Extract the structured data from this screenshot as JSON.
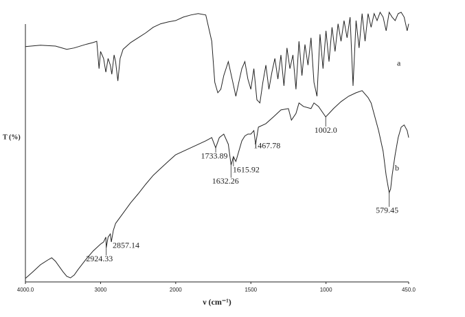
{
  "chart_data": {
    "type": "line",
    "x_label": "ν (cm⁻¹)",
    "y_label": "T (%)",
    "xlim": [
      4000,
      450
    ],
    "x_scale_split": 2000,
    "xticks": [
      {
        "value": 4000,
        "label": "4000.0"
      },
      3000,
      2000,
      1500,
      1000,
      {
        "value": 450,
        "label": "450.0"
      }
    ],
    "ylim": [
      0,
      102
    ],
    "series": [
      {
        "name": "a",
        "color": "#222222",
        "x": [
          4000,
          3800,
          3600,
          3450,
          3350,
          3200,
          3100,
          3050,
          3020,
          3000,
          2960,
          2930,
          2900,
          2870,
          2850,
          2820,
          2800,
          2770,
          2740,
          2700,
          2600,
          2500,
          2400,
          2300,
          2200,
          2100,
          2000,
          1950,
          1900,
          1850,
          1800,
          1760,
          1740,
          1720,
          1700,
          1680,
          1650,
          1620,
          1600,
          1580,
          1560,
          1540,
          1520,
          1500,
          1480,
          1460,
          1440,
          1420,
          1400,
          1380,
          1360,
          1340,
          1320,
          1300,
          1280,
          1260,
          1240,
          1220,
          1200,
          1180,
          1160,
          1140,
          1120,
          1100,
          1080,
          1060,
          1040,
          1020,
          1000,
          980,
          960,
          940,
          920,
          900,
          880,
          860,
          840,
          820,
          800,
          780,
          760,
          740,
          720,
          700,
          680,
          660,
          640,
          620,
          600,
          580,
          560,
          540,
          520,
          500,
          480,
          460,
          450
        ],
        "values": [
          87.7,
          88.2,
          87.9,
          86.7,
          87.2,
          88.5,
          89.2,
          89.7,
          79.5,
          85.9,
          83.3,
          78.2,
          83.3,
          80.8,
          77.4,
          84.6,
          82.1,
          74.9,
          83.3,
          86.7,
          89.2,
          91.0,
          92.8,
          94.9,
          96.2,
          96.9,
          97.4,
          98.7,
          99.5,
          100,
          99.5,
          89.7,
          74.4,
          70.5,
          71.8,
          76.9,
          82.1,
          74.4,
          69.2,
          74.4,
          79.5,
          82.1,
          75.6,
          71.8,
          79.5,
          67.9,
          66.7,
          74.4,
          80.8,
          71.8,
          78.2,
          83.3,
          75.6,
          84.6,
          73.1,
          87.2,
          79.5,
          84.6,
          71.8,
          89.7,
          76.9,
          88.5,
          80.8,
          91.0,
          74.4,
          69.2,
          92.3,
          79.5,
          93.6,
          82.1,
          94.9,
          85.9,
          96.2,
          89.7,
          97.4,
          91.0,
          98.7,
          73.1,
          97.4,
          87.2,
          100,
          89.7,
          100,
          94.9,
          100,
          97.4,
          100.5,
          98.7,
          93.6,
          100.5,
          98.7,
          97.4,
          100,
          100.5,
          98.7,
          93.6,
          96.2
        ]
      },
      {
        "name": "b",
        "color": "#222222",
        "x": [
          4000,
          3900,
          3800,
          3700,
          3650,
          3600,
          3500,
          3450,
          3400,
          3350,
          3300,
          3200,
          3100,
          3000,
          2960,
          2930,
          2924,
          2900,
          2870,
          2857,
          2830,
          2800,
          2700,
          2600,
          2500,
          2400,
          2300,
          2200,
          2100,
          2000,
          1900,
          1800,
          1760,
          1734,
          1710,
          1680,
          1650,
          1632,
          1616,
          1600,
          1580,
          1560,
          1540,
          1520,
          1500,
          1480,
          1468,
          1450,
          1400,
          1350,
          1300,
          1250,
          1230,
          1200,
          1180,
          1150,
          1100,
          1080,
          1050,
          1002,
          980,
          950,
          900,
          850,
          800,
          760,
          720,
          700,
          650,
          620,
          600,
          580,
          570,
          560,
          540,
          520,
          500,
          480,
          460,
          450
        ],
        "values": [
          1.3,
          3.8,
          6.4,
          8.2,
          9.0,
          7.7,
          3.8,
          2.1,
          1.5,
          2.6,
          4.6,
          8.2,
          11.5,
          14.1,
          14.9,
          16.7,
          12.8,
          16.7,
          17.9,
          14.9,
          19.2,
          21.8,
          25.6,
          29.5,
          32.8,
          36.4,
          39.7,
          42.3,
          44.9,
          47.4,
          50.0,
          52.6,
          53.8,
          50.0,
          53.8,
          55.1,
          51.3,
          43.6,
          46.7,
          44.9,
          48.7,
          52.6,
          54.4,
          55.1,
          55.1,
          56.4,
          51.3,
          57.7,
          59.0,
          61.5,
          64.1,
          64.6,
          60.3,
          62.8,
          66.7,
          65.4,
          64.6,
          66.7,
          65.4,
          61.5,
          62.8,
          64.6,
          67.2,
          69.2,
          70.5,
          71.3,
          68.7,
          66.7,
          56.4,
          48.7,
          39.7,
          33.3,
          34.6,
          39.7,
          47.4,
          53.8,
          57.7,
          58.5,
          56.4,
          53.8
        ]
      }
    ],
    "annotations": [
      {
        "label": "2924.33",
        "x": 2924.33
      },
      {
        "label": "2857.14",
        "x": 2857.14
      },
      {
        "label": "1733.89",
        "x": 1733.89
      },
      {
        "label": "1632.26",
        "x": 1632.26
      },
      {
        "label": "1615.92",
        "x": 1615.92
      },
      {
        "label": "1467.78",
        "x": 1467.78
      },
      {
        "label": "1002.0",
        "x": 1002.0
      },
      {
        "label": "579.45",
        "x": 579.45
      }
    ]
  }
}
